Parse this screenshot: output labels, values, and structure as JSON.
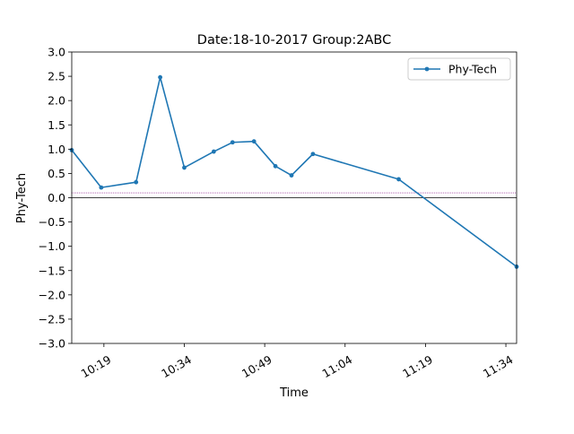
{
  "chart_data": {
    "type": "line",
    "title": "Date:18-10-2017 Group:2ABC",
    "xlabel": "Time",
    "ylabel": "Phy-Tech",
    "x_ticks": [
      "10:19",
      "10:34",
      "10:49",
      "11:04",
      "11:19",
      "11:34"
    ],
    "y_ticks": [
      "3.0",
      "2.5",
      "2.0",
      "1.5",
      "1.0",
      "0.5",
      "0.0",
      "−0.5",
      "−1.0",
      "−1.5",
      "−2.0",
      "−2.5",
      "−3.0"
    ],
    "xlim": [
      "10:13",
      "11:36"
    ],
    "ylim": [
      -3.0,
      3.0
    ],
    "grid": false,
    "legend_position": "top-right",
    "series": [
      {
        "name": "Phy-Tech",
        "color": "#1f77b4",
        "marker": "dot",
        "x": [
          "10:13",
          "10:18.5",
          "10:25",
          "10:29.5",
          "10:34",
          "10:39.5",
          "10:43",
          "10:47",
          "10:51",
          "10:54",
          "10:58",
          "11:14",
          "11:36"
        ],
        "y": [
          0.98,
          0.21,
          0.32,
          2.48,
          0.62,
          0.95,
          1.14,
          1.16,
          0.65,
          0.46,
          0.9,
          0.38,
          -1.42
        ]
      }
    ],
    "reference_lines": [
      {
        "y": 0.0,
        "color": "#000000",
        "style": "solid"
      },
      {
        "y": 0.1,
        "color": "#800080",
        "style": "dotted"
      }
    ]
  }
}
